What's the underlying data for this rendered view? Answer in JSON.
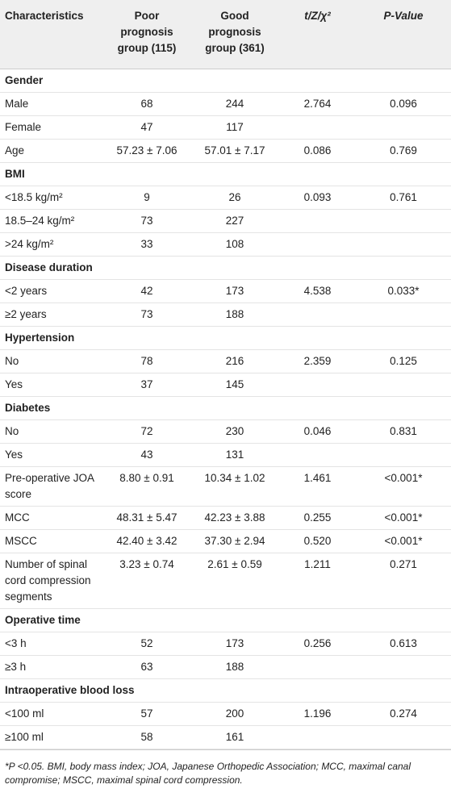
{
  "table": {
    "header": [
      "Characteristics",
      "Poor prognosis group (115)",
      "Good prognosis group (361)",
      "t/Z/χ²",
      "P-Value"
    ],
    "rows": [
      [
        "Gender"
      ],
      [
        "Male",
        "68",
        "244",
        "2.764",
        "0.096"
      ],
      [
        "Female",
        "47",
        "117",
        null,
        null
      ],
      [
        "Age",
        "57.23 ± 7.06",
        "57.01 ± 7.17",
        "0.086",
        "0.769"
      ],
      [
        "BMI"
      ],
      [
        "<18.5 kg/m²",
        "9",
        "26",
        "0.093",
        "0.761"
      ],
      [
        "18.5–24 kg/m²",
        "73",
        "227",
        null,
        null
      ],
      [
        ">24 kg/m²",
        "33",
        "108",
        null,
        null
      ],
      [
        "Disease duration"
      ],
      [
        "<2 years",
        "42",
        "173",
        "4.538",
        "0.033*"
      ],
      [
        "≥2 years",
        "73",
        "188",
        null,
        null
      ],
      [
        "Hypertension"
      ],
      [
        "No",
        "78",
        "216",
        "2.359",
        "0.125"
      ],
      [
        "Yes",
        "37",
        "145",
        null,
        null
      ],
      [
        "Diabetes"
      ],
      [
        "No",
        "72",
        "230",
        "0.046",
        "0.831"
      ],
      [
        "Yes",
        "43",
        "131",
        null,
        null
      ],
      [
        "Pre-operative JOA score",
        "8.80 ± 0.91",
        "10.34 ± 1.02",
        "1.461",
        "<0.001*"
      ],
      [
        "MCC",
        "48.31 ± 5.47",
        "42.23 ± 3.88",
        "0.255",
        "<0.001*"
      ],
      [
        "MSCC",
        "42.40 ± 3.42",
        "37.30 ± 2.94",
        "0.520",
        "<0.001*"
      ],
      [
        "Number of spinal cord compression segments",
        "3.23 ± 0.74",
        "2.61 ± 0.59",
        "1.211",
        "0.271"
      ],
      [
        "Operative time"
      ],
      [
        "<3 h",
        "52",
        "173",
        "0.256",
        "0.613"
      ],
      [
        "≥3 h",
        "63",
        "188",
        null,
        null
      ],
      [
        "Intraoperative blood loss"
      ],
      [
        "<100 ml",
        "57",
        "200",
        "1.196",
        "0.274"
      ],
      [
        "≥100 ml",
        "58",
        "161",
        null,
        null
      ]
    ],
    "footnote": "*P <0.05. BMI, body mass index; JOA, Japanese Orthopedic Association; MCC, maximal canal compromise; MSCC, maximal spinal cord compression."
  }
}
